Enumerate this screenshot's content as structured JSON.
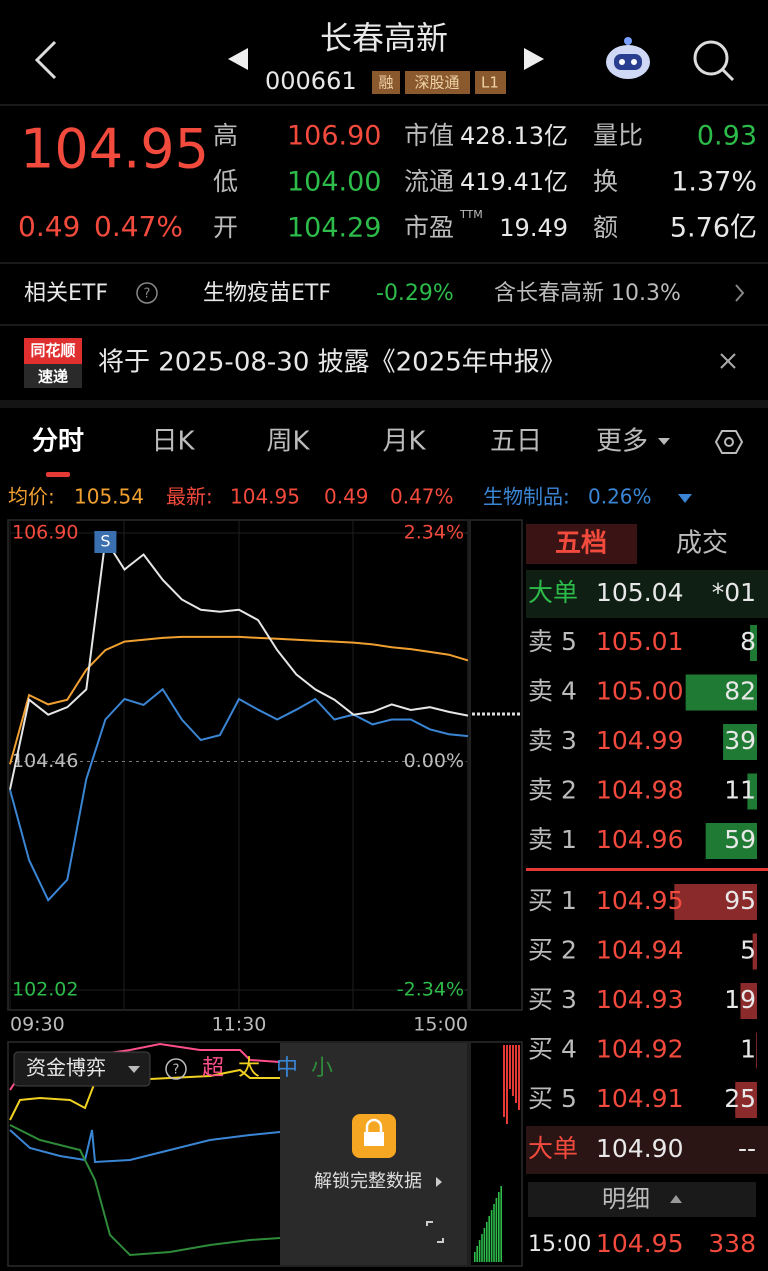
{
  "header": {
    "title": "长春高新",
    "code": "000661",
    "tags": [
      "融",
      "深股通",
      "L1"
    ]
  },
  "quote": {
    "price": "104.95",
    "change": "0.49",
    "change_pct": "0.47%",
    "col1": [
      {
        "label": "高",
        "value": "106.90"
      },
      {
        "label": "低",
        "value": "104.00"
      },
      {
        "label": "开",
        "value": "104.29"
      }
    ],
    "col2": [
      {
        "label": "市值",
        "value": "428.13亿"
      },
      {
        "label": "流通",
        "value": "419.41亿"
      },
      {
        "label": "市盈",
        "sup": "TTM",
        "value": "19.49"
      }
    ],
    "col3": [
      {
        "label": "量比",
        "value": "0.93"
      },
      {
        "label": "换",
        "value": "1.37%"
      },
      {
        "label": "额",
        "value": "5.76亿"
      }
    ]
  },
  "etf": {
    "label": "相关ETF",
    "name": "生物疫苗ETF",
    "change": "-0.29%",
    "holding": "含长春高新 10.3%"
  },
  "notice": {
    "badge_top": "同花顺",
    "badge_bottom": "速递",
    "text": "将于 2025-08-30 披露《2025年中报》"
  },
  "tabs": [
    "分时",
    "日K",
    "周K",
    "月K",
    "五日",
    "更多"
  ],
  "legend": {
    "avg_label": "均价:",
    "avg_value": "105.54",
    "last_label": "最新:",
    "last_value": "104.95",
    "last_change": "0.49",
    "last_pct": "0.47%",
    "sector_label": "生物制品:",
    "sector_value": "0.26%"
  },
  "chart_data": {
    "type": "line",
    "marker": "S",
    "categories": [
      "09:30",
      null,
      null,
      null,
      null,
      null,
      null,
      null,
      null,
      null,
      null,
      null,
      "11:30",
      null,
      null,
      null,
      null,
      null,
      null,
      null,
      null,
      null,
      null,
      null,
      "15:00"
    ],
    "series": [
      {
        "name": "最新",
        "color": "#e6e6e6",
        "values": [
          104.16,
          105.12,
          104.96,
          105.04,
          105.23,
          106.83,
          106.51,
          106.67,
          106.4,
          106.19,
          106.08,
          106.06,
          106.08,
          105.97,
          105.65,
          105.39,
          105.23,
          105.12,
          104.96,
          104.99,
          105.07,
          105.01,
          105.04,
          104.99,
          104.95
        ]
      },
      {
        "name": "均价",
        "color": "#f0a030",
        "values": [
          104.43,
          105.17,
          105.07,
          105.12,
          105.44,
          105.65,
          105.74,
          105.76,
          105.78,
          105.79,
          105.79,
          105.79,
          105.79,
          105.78,
          105.77,
          105.76,
          105.75,
          105.74,
          105.73,
          105.71,
          105.68,
          105.66,
          105.63,
          105.6,
          105.54
        ]
      },
      {
        "name": "生物制品",
        "color": "#3a86d4",
        "axis": "y2",
        "values": [
          -0.29,
          -1.01,
          -1.42,
          -1.21,
          -0.18,
          0.43,
          0.64,
          0.58,
          0.74,
          0.43,
          0.22,
          0.27,
          0.64,
          0.53,
          0.43,
          0.53,
          0.64,
          0.43,
          0.48,
          0.38,
          0.43,
          0.43,
          0.33,
          0.28,
          0.26
        ]
      }
    ],
    "ylim": [
      102.02,
      106.9
    ],
    "yticks": [
      {
        "value": 102.02,
        "label": "102.02"
      },
      {
        "value": 104.46,
        "label": "104.46"
      },
      {
        "value": 106.9,
        "label": "106.90"
      }
    ],
    "y2lim": [
      -2.34,
      2.34
    ],
    "y2ticks": [
      {
        "value": -2.34,
        "label": "-2.34%"
      },
      {
        "value": 0,
        "label": "0.00%"
      },
      {
        "value": 2.34,
        "label": "2.34%"
      }
    ],
    "grid": true
  },
  "flow_panel": {
    "title": "资金博弈",
    "series_labels": [
      "超",
      "大",
      "中",
      "小"
    ],
    "lock_text": "解锁完整数据"
  },
  "order_book": {
    "tabs": [
      "五档",
      "成交"
    ],
    "big_sell": {
      "label": "大单",
      "price": "105.04",
      "volume": "*01"
    },
    "asks": [
      {
        "label": "卖 5",
        "price": "105.01",
        "volume": 8
      },
      {
        "label": "卖 4",
        "price": "105.00",
        "volume": 82
      },
      {
        "label": "卖 3",
        "price": "104.99",
        "volume": 39
      },
      {
        "label": "卖 2",
        "price": "104.98",
        "volume": 11
      },
      {
        "label": "卖 1",
        "price": "104.96",
        "volume": 59
      }
    ],
    "bids": [
      {
        "label": "买 1",
        "price": "104.95",
        "volume": 95
      },
      {
        "label": "买 2",
        "price": "104.94",
        "volume": 5
      },
      {
        "label": "买 3",
        "price": "104.93",
        "volume": 19
      },
      {
        "label": "买 4",
        "price": "104.92",
        "volume": 1
      },
      {
        "label": "买 5",
        "price": "104.91",
        "volume": 25
      }
    ],
    "big_buy": {
      "label": "大单",
      "price": "104.90",
      "volume": "--"
    },
    "detail": "明细",
    "trades": [
      {
        "time": "15:00",
        "price": "104.95",
        "volume": "338"
      }
    ]
  }
}
